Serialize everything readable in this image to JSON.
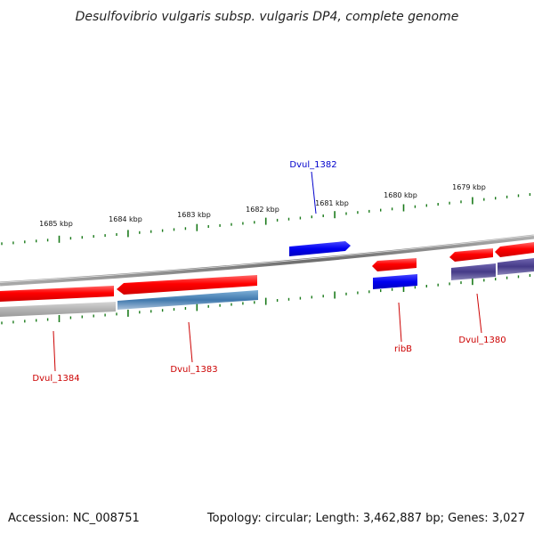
{
  "title": "Desulfovibrio vulgaris subsp. vulgaris DP4, complete genome",
  "footer": {
    "accession": "Accession: NC_008751",
    "stats": "Topology: circular; Length: 3,462,887 bp; Genes: 3,027"
  },
  "colors": {
    "backbone": "#808080",
    "ticks": "#1a7a1a",
    "label_red": "#cc0000",
    "label_blue": "#0000cc",
    "gene_red": "#ff0000",
    "gene_blue": "#0000ff",
    "gene_gray": "#b8b8b8",
    "gene_steel": "#4a7fb0",
    "gene_purple": "#4a3f8c"
  },
  "ruler": {
    "labels": [
      "1685 kbp",
      "1684 kbp",
      "1683 kbp",
      "1682 kbp",
      "1681 kbp",
      "1680 kbp",
      "1679 kbp"
    ]
  },
  "genes": [
    {
      "name": "Dvul_1384",
      "color": "red",
      "strand": "reverse"
    },
    {
      "name": "Dvul_1383",
      "color": "red",
      "strand": "reverse"
    },
    {
      "name": "Dvul_1382",
      "color": "blue",
      "strand": "forward"
    },
    {
      "name": "ribB",
      "color": "red",
      "strand": "reverse"
    },
    {
      "name": "Dvul_1380",
      "color": "red",
      "strand": "reverse"
    }
  ]
}
